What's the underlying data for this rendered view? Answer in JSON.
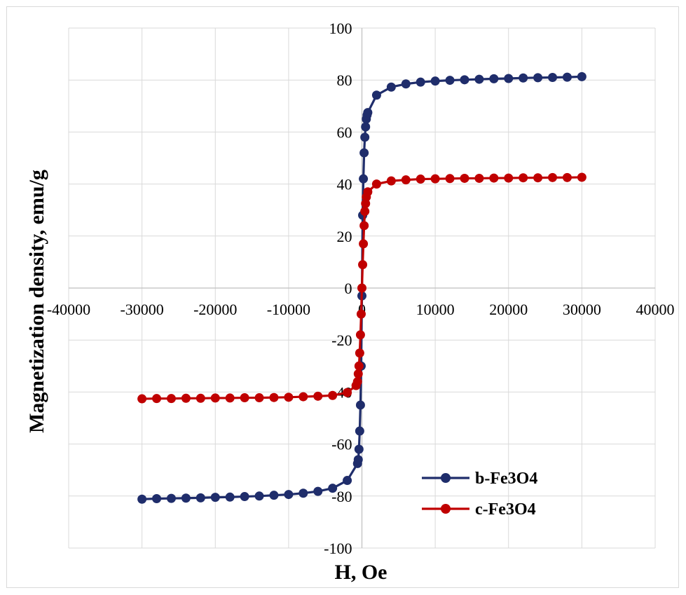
{
  "chart_data": {
    "type": "scatter",
    "title": "",
    "xlabel": "H, Oe",
    "ylabel": "Magnetization density, emu/g",
    "xlim": [
      -40000,
      40000
    ],
    "ylim": [
      -100,
      100
    ],
    "x_ticks": [
      "-40000",
      "-30000",
      "-20000",
      "-10000",
      "0",
      "10000",
      "20000",
      "30000",
      "40000"
    ],
    "y_ticks": [
      "100",
      "80",
      "60",
      "40",
      "20",
      "0",
      "-20",
      "-40",
      "-60",
      "-80",
      "-100"
    ],
    "grid": true,
    "legend_position": "bottom-right",
    "series": [
      {
        "name": "b-Fe3O4",
        "color": "#1f2d6b",
        "points": [
          [
            -30000,
            -81.2
          ],
          [
            -28000,
            -81.0
          ],
          [
            -26000,
            -80.9
          ],
          [
            -24000,
            -80.8
          ],
          [
            -22000,
            -80.7
          ],
          [
            -20000,
            -80.5
          ],
          [
            -18000,
            -80.4
          ],
          [
            -16000,
            -80.2
          ],
          [
            -14000,
            -80.0
          ],
          [
            -12000,
            -79.7
          ],
          [
            -10000,
            -79.4
          ],
          [
            -8000,
            -78.9
          ],
          [
            -6000,
            -78.2
          ],
          [
            -4000,
            -77.0
          ],
          [
            -2000,
            -74.0
          ],
          [
            -600,
            -67.5
          ],
          [
            -500,
            -66.0
          ],
          [
            -400,
            -62.0
          ],
          [
            -300,
            -55.0
          ],
          [
            -200,
            -45.0
          ],
          [
            -100,
            -30.0
          ],
          [
            0,
            -3.0
          ],
          [
            100,
            28.0
          ],
          [
            200,
            42.0
          ],
          [
            300,
            52.0
          ],
          [
            400,
            58.0
          ],
          [
            500,
            62.0
          ],
          [
            600,
            65.0
          ],
          [
            700,
            66.5
          ],
          [
            800,
            67.5
          ],
          [
            2000,
            74.2
          ],
          [
            4000,
            77.3
          ],
          [
            6000,
            78.5
          ],
          [
            8000,
            79.2
          ],
          [
            10000,
            79.6
          ],
          [
            12000,
            79.9
          ],
          [
            14000,
            80.1
          ],
          [
            16000,
            80.3
          ],
          [
            18000,
            80.5
          ],
          [
            20000,
            80.6
          ],
          [
            22000,
            80.8
          ],
          [
            24000,
            80.9
          ],
          [
            26000,
            81.0
          ],
          [
            28000,
            81.1
          ],
          [
            30000,
            81.3
          ]
        ]
      },
      {
        "name": "c-Fe3O4",
        "color": "#c00000",
        "points": [
          [
            -30000,
            -42.6
          ],
          [
            -28000,
            -42.5
          ],
          [
            -26000,
            -42.5
          ],
          [
            -24000,
            -42.4
          ],
          [
            -22000,
            -42.4
          ],
          [
            -20000,
            -42.3
          ],
          [
            -18000,
            -42.3
          ],
          [
            -16000,
            -42.2
          ],
          [
            -14000,
            -42.2
          ],
          [
            -12000,
            -42.1
          ],
          [
            -10000,
            -42.0
          ],
          [
            -8000,
            -41.8
          ],
          [
            -6000,
            -41.6
          ],
          [
            -4000,
            -41.3
          ],
          [
            -2000,
            -40.2
          ],
          [
            -800,
            -37.5
          ],
          [
            -600,
            -36.0
          ],
          [
            -500,
            -33.0
          ],
          [
            -400,
            -30.0
          ],
          [
            -300,
            -25.0
          ],
          [
            -200,
            -18.0
          ],
          [
            -100,
            -10.0
          ],
          [
            0,
            0.0
          ],
          [
            100,
            9.0
          ],
          [
            200,
            17.0
          ],
          [
            300,
            24.0
          ],
          [
            400,
            29.5
          ],
          [
            500,
            32.5
          ],
          [
            600,
            35.0
          ],
          [
            800,
            37.0
          ],
          [
            2000,
            40.0
          ],
          [
            4000,
            41.2
          ],
          [
            6000,
            41.6
          ],
          [
            8000,
            41.9
          ],
          [
            10000,
            42.0
          ],
          [
            12000,
            42.1
          ],
          [
            14000,
            42.2
          ],
          [
            16000,
            42.2
          ],
          [
            18000,
            42.3
          ],
          [
            20000,
            42.3
          ],
          [
            22000,
            42.4
          ],
          [
            24000,
            42.4
          ],
          [
            26000,
            42.5
          ],
          [
            28000,
            42.5
          ],
          [
            30000,
            42.6
          ]
        ]
      }
    ]
  }
}
